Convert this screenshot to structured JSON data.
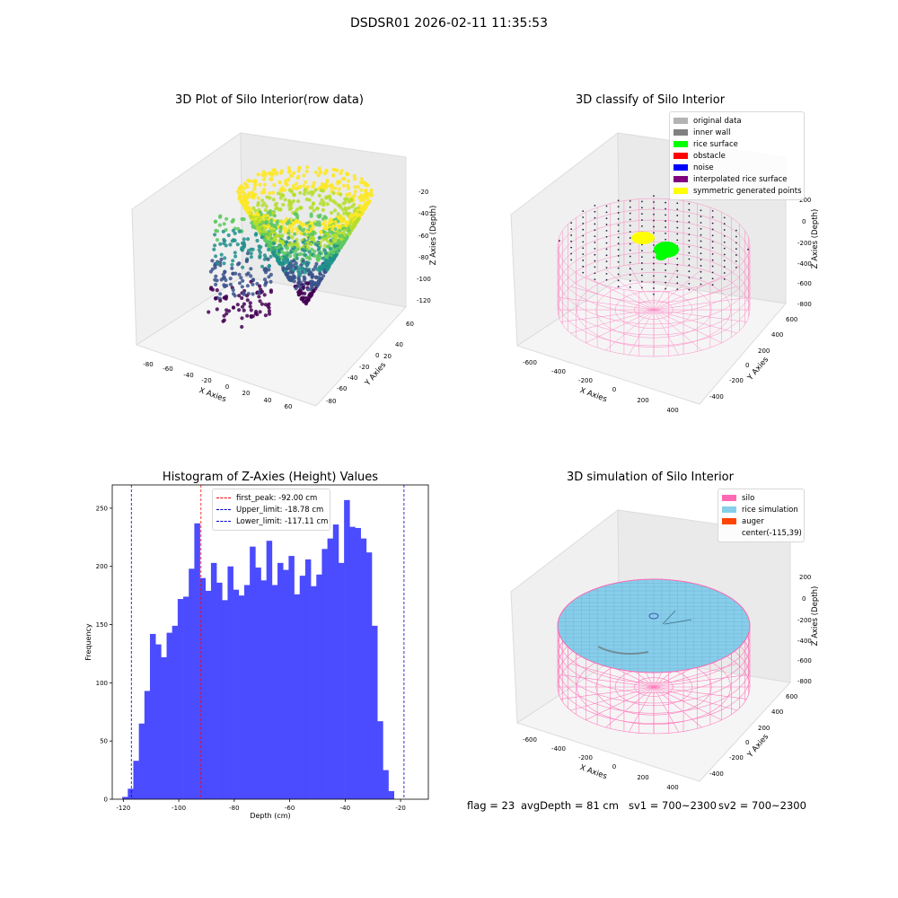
{
  "suptitle": "DSDSR01 2026-02-11 11:35:53",
  "panels": {
    "raw": {
      "title": "3D Plot of Silo Interior(row data)",
      "xlabel": "X Axies",
      "ylabel": "Y Axies",
      "zlabel": "Z Axies (Depth)",
      "xticks": [
        "-80",
        "-60",
        "-40",
        "-20",
        "0",
        "20",
        "40",
        "60"
      ],
      "yticks": [
        "60",
        "40",
        "20",
        "0",
        "-20",
        "-40",
        "-60",
        "-80"
      ],
      "zticks": [
        "-20",
        "-40",
        "-60",
        "-80",
        "-100",
        "-120"
      ]
    },
    "classify": {
      "title": "3D classify of Silo Interior",
      "xlabel": "X Axies",
      "ylabel": "Y Axies",
      "zlabel": "Z Axies (Depth)",
      "xticks": [
        "-600",
        "-400",
        "-200",
        "0",
        "200",
        "400"
      ],
      "yticks": [
        "600",
        "400",
        "200",
        "0",
        "-200",
        "-400"
      ],
      "zticks": [
        "200",
        "0",
        "-200",
        "-400",
        "-600",
        "-800"
      ],
      "legend": [
        {
          "label": "original data",
          "color": "#b3b3b3"
        },
        {
          "label": "inner wall",
          "color": "#808080"
        },
        {
          "label": "rice surface",
          "color": "#00ff00"
        },
        {
          "label": "obstacle",
          "color": "#ff0000"
        },
        {
          "label": "noise",
          "color": "#0000ff"
        },
        {
          "label": "interpolated rice surface",
          "color": "#800080"
        },
        {
          "label": "symmetric generated points",
          "color": "#ffff00"
        }
      ]
    },
    "simulation": {
      "title": "3D simulation of Silo Interior",
      "xlabel": "X Axies",
      "ylabel": "Y Axies",
      "zlabel": "Z Axies (Depth)",
      "xticks": [
        "-600",
        "-400",
        "-200",
        "0",
        "200",
        "400"
      ],
      "yticks": [
        "600",
        "400",
        "200",
        "0",
        "-200",
        "-400"
      ],
      "zticks": [
        "200",
        "0",
        "-200",
        "-400",
        "-600",
        "-800"
      ],
      "legend": [
        {
          "label": "silo",
          "color": "#ff69b4"
        },
        {
          "label": "rice simulation",
          "color": "#87ceeb"
        },
        {
          "label": "auger",
          "color": "#ff4500"
        },
        {
          "label": "center(-115,39)",
          "color": ""
        }
      ]
    }
  },
  "chart_data": {
    "type": "bar",
    "title": "Histogram of Z-Axies (Height) Values",
    "xlabel": "Depth (cm)",
    "ylabel": "Frequency",
    "xlim": [
      -124,
      -10
    ],
    "ylim": [
      0,
      270
    ],
    "xticks": [
      -120,
      -100,
      -80,
      -60,
      -40,
      -20
    ],
    "yticks": [
      0,
      50,
      100,
      150,
      200,
      250
    ],
    "bin_start": -120.4,
    "bin_width": 2,
    "values": [
      2,
      9,
      33,
      65,
      93,
      142,
      133,
      122,
      143,
      149,
      172,
      174,
      198,
      237,
      190,
      179,
      203,
      186,
      171,
      200,
      180,
      175,
      184,
      217,
      199,
      188,
      222,
      184,
      203,
      197,
      209,
      176,
      192,
      206,
      183,
      193,
      215,
      224,
      236,
      203,
      257,
      234,
      233,
      224,
      212,
      149,
      67,
      25,
      7
    ],
    "vlines": [
      {
        "x": -92.0,
        "label": "first_peak: -92.00 cm",
        "color": "#ff0000"
      },
      {
        "x": -18.78,
        "label": "Upper_limit: -18.78 cm",
        "color": "#0000cc"
      },
      {
        "x": -117.11,
        "label": "Lower_limit: -117.11 cm",
        "color": "#0000cc"
      }
    ],
    "bar_color": "#4b4bff"
  },
  "footer": {
    "flag": "flag = 23",
    "avg": "avgDepth = 81 cm",
    "sv1": "sv1 = 700~2300",
    "sv2": "sv2 = 700~2300"
  }
}
